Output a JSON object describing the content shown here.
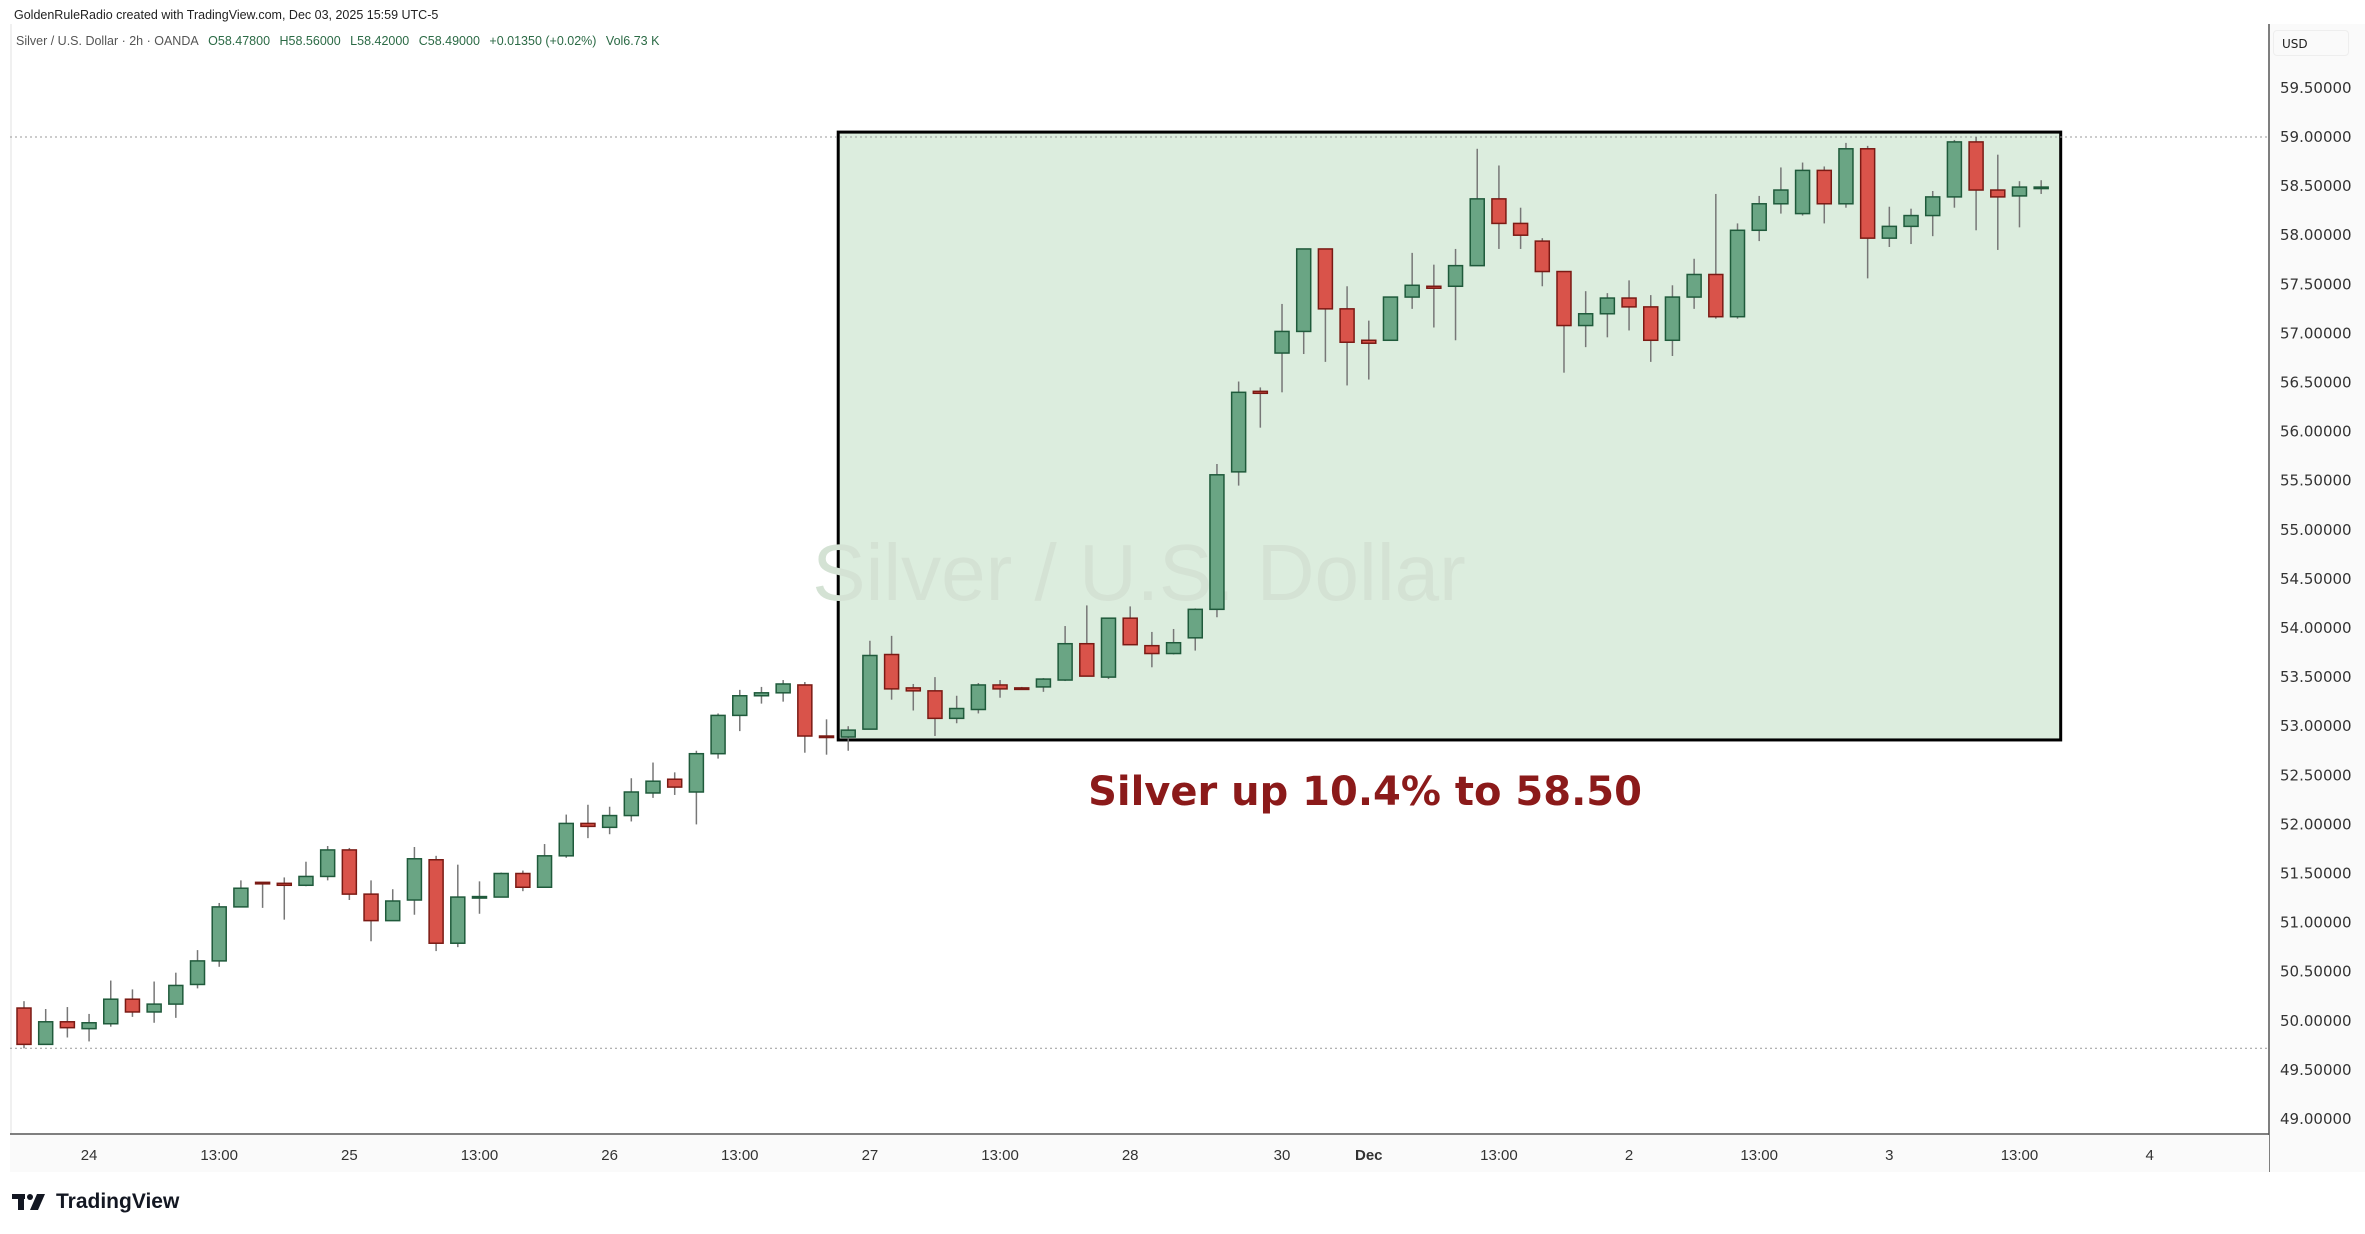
{
  "credit": "GoldenRuleRadio created with TradingView.com, Dec 03, 2025 15:59 UTC-5",
  "legend": {
    "symbol": "Silver / U.S. Dollar · 2h · OANDA",
    "open": "O58.47800",
    "high": "H58.56000",
    "low": "L58.42000",
    "close": "C58.49000",
    "change": "+0.01350 (+0.02%)",
    "volume": "Vol6.73 K"
  },
  "currency": "USD",
  "watermark": "Silver / U.S. Dollar",
  "annotation": "Silver up 10.4% to 58.50",
  "brand": "TradingView",
  "colors": {
    "up_fill": "#6aa584",
    "up_border": "#1f5a3b",
    "down_fill": "#d9534a",
    "down_border": "#7a1a14",
    "wick": "#777777",
    "box_fill": "#dcedde",
    "annotation": "#8b1a1a"
  },
  "chart_data": {
    "type": "candlestick",
    "title": "Silver / U.S. Dollar · 2h · OANDA",
    "ylabel": "USD",
    "ylim": [
      48.75,
      59.85
    ],
    "yticks": [
      "59.50000",
      "59.00000",
      "58.50000",
      "58.00000",
      "57.50000",
      "57.00000",
      "56.50000",
      "56.00000",
      "55.50000",
      "55.00000",
      "54.50000",
      "54.00000",
      "53.50000",
      "53.00000",
      "52.50000",
      "52.00000",
      "51.50000",
      "51.00000",
      "50.50000",
      "50.00000",
      "49.50000",
      "49.00000"
    ],
    "xticks": [
      {
        "index": 3,
        "label": "24",
        "bold": false
      },
      {
        "index": 9,
        "label": "13:00",
        "bold": false
      },
      {
        "index": 15,
        "label": "25",
        "bold": false
      },
      {
        "index": 21,
        "label": "13:00",
        "bold": false
      },
      {
        "index": 27,
        "label": "26",
        "bold": false
      },
      {
        "index": 33,
        "label": "13:00",
        "bold": false
      },
      {
        "index": 39,
        "label": "27",
        "bold": false
      },
      {
        "index": 45,
        "label": "13:00",
        "bold": false
      },
      {
        "index": 51,
        "label": "28",
        "bold": false
      },
      {
        "index": 58,
        "label": "30",
        "bold": false
      },
      {
        "index": 62,
        "label": "Dec",
        "bold": true
      },
      {
        "index": 68,
        "label": "13:00",
        "bold": false
      },
      {
        "index": 74,
        "label": "2",
        "bold": false
      },
      {
        "index": 80,
        "label": "13:00",
        "bold": false
      },
      {
        "index": 86,
        "label": "3",
        "bold": false
      },
      {
        "index": 92,
        "label": "13:00",
        "bold": false
      },
      {
        "index": 98,
        "label": "4",
        "bold": false
      }
    ],
    "high_line": 59.0,
    "low_line": 49.72,
    "highlight_box": {
      "from_index": 38,
      "to_index": 93.9,
      "price_low": 52.86,
      "price_high": 59.05
    },
    "ohlc": [
      [
        50.13,
        50.2,
        49.72,
        49.76
      ],
      [
        49.76,
        50.12,
        49.76,
        49.99
      ],
      [
        49.99,
        50.14,
        49.83,
        49.93
      ],
      [
        49.92,
        50.07,
        49.79,
        49.98
      ],
      [
        49.97,
        50.41,
        49.94,
        50.22
      ],
      [
        50.22,
        50.32,
        50.04,
        50.09
      ],
      [
        50.09,
        50.4,
        49.98,
        50.17
      ],
      [
        50.17,
        50.49,
        50.03,
        50.36
      ],
      [
        50.37,
        50.72,
        50.33,
        50.61
      ],
      [
        50.61,
        51.2,
        50.55,
        51.16
      ],
      [
        51.16,
        51.43,
        51.16,
        51.35
      ],
      [
        51.41,
        51.41,
        51.15,
        51.4
      ],
      [
        51.4,
        51.46,
        51.03,
        51.38
      ],
      [
        51.38,
        51.62,
        51.37,
        51.47
      ],
      [
        51.47,
        51.78,
        51.43,
        51.74
      ],
      [
        51.74,
        51.76,
        51.23,
        51.29
      ],
      [
        51.29,
        51.43,
        50.81,
        51.02
      ],
      [
        51.02,
        51.34,
        51.02,
        51.22
      ],
      [
        51.23,
        51.77,
        51.08,
        51.65
      ],
      [
        51.64,
        51.68,
        50.71,
        50.79
      ],
      [
        50.79,
        51.59,
        50.75,
        51.26
      ],
      [
        51.26,
        51.42,
        51.09,
        51.265
      ],
      [
        51.26,
        51.51,
        51.26,
        51.5
      ],
      [
        51.5,
        51.53,
        51.32,
        51.36
      ],
      [
        51.36,
        51.8,
        51.36,
        51.68
      ],
      [
        51.68,
        52.1,
        51.66,
        52.01
      ],
      [
        52.01,
        52.2,
        51.86,
        51.98
      ],
      [
        51.97,
        52.18,
        51.9,
        52.09
      ],
      [
        52.09,
        52.47,
        52.03,
        52.33
      ],
      [
        52.32,
        52.63,
        52.27,
        52.44
      ],
      [
        52.46,
        52.53,
        52.3,
        52.38
      ],
      [
        52.33,
        52.75,
        52.0,
        52.72
      ],
      [
        52.72,
        53.13,
        52.67,
        53.11
      ],
      [
        53.11,
        53.37,
        52.95,
        53.31
      ],
      [
        53.31,
        53.4,
        53.23,
        53.34
      ],
      [
        53.34,
        53.47,
        53.25,
        53.43
      ],
      [
        53.42,
        53.45,
        52.73,
        52.9
      ],
      [
        52.9,
        53.07,
        52.71,
        52.895
      ],
      [
        52.89,
        53.0,
        52.75,
        52.96
      ],
      [
        52.97,
        53.87,
        52.97,
        53.72
      ],
      [
        53.73,
        53.92,
        53.27,
        53.38
      ],
      [
        53.39,
        53.43,
        53.16,
        53.36
      ],
      [
        53.36,
        53.5,
        52.9,
        53.08
      ],
      [
        53.08,
        53.31,
        53.03,
        53.18
      ],
      [
        53.17,
        53.44,
        53.13,
        53.42
      ],
      [
        53.42,
        53.47,
        53.29,
        53.38
      ],
      [
        53.39,
        53.4,
        53.39,
        53.385
      ],
      [
        53.4,
        53.49,
        53.35,
        53.48
      ],
      [
        53.47,
        54.02,
        53.46,
        53.84
      ],
      [
        53.84,
        54.23,
        53.51,
        53.51
      ],
      [
        53.5,
        54.1,
        53.48,
        54.1
      ],
      [
        54.1,
        54.22,
        53.83,
        53.83
      ],
      [
        53.82,
        53.96,
        53.6,
        53.74
      ],
      [
        53.74,
        53.99,
        53.73,
        53.85
      ],
      [
        53.9,
        54.2,
        53.77,
        54.19
      ],
      [
        54.19,
        55.67,
        54.11,
        55.56
      ],
      [
        55.59,
        56.51,
        55.45,
        56.4
      ],
      [
        56.41,
        56.45,
        56.04,
        56.39
      ],
      [
        56.8,
        57.3,
        56.4,
        57.02
      ],
      [
        57.02,
        57.86,
        56.79,
        57.86
      ],
      [
        57.86,
        57.86,
        56.71,
        57.25
      ],
      [
        57.25,
        57.48,
        56.47,
        56.91
      ],
      [
        56.93,
        57.13,
        56.53,
        56.9
      ],
      [
        56.93,
        57.37,
        56.93,
        57.37
      ],
      [
        57.37,
        57.82,
        57.25,
        57.49
      ],
      [
        57.48,
        57.7,
        57.06,
        57.46
      ],
      [
        57.48,
        57.86,
        56.93,
        57.69
      ],
      [
        57.69,
        58.88,
        57.69,
        58.37
      ],
      [
        58.37,
        58.71,
        57.86,
        58.12
      ],
      [
        58.12,
        58.28,
        57.86,
        58.0
      ],
      [
        57.94,
        57.97,
        57.48,
        57.63
      ],
      [
        57.63,
        57.63,
        56.6,
        57.08
      ],
      [
        57.08,
        57.43,
        56.86,
        57.2
      ],
      [
        57.2,
        57.41,
        56.96,
        57.36
      ],
      [
        57.36,
        57.54,
        57.03,
        57.27
      ],
      [
        57.27,
        57.39,
        56.71,
        56.93
      ],
      [
        56.93,
        57.49,
        56.77,
        57.37
      ],
      [
        57.37,
        57.76,
        57.25,
        57.6
      ],
      [
        57.6,
        58.42,
        57.15,
        57.17
      ],
      [
        57.17,
        58.12,
        57.15,
        58.05
      ],
      [
        58.05,
        58.4,
        57.94,
        58.32
      ],
      [
        58.32,
        58.69,
        58.22,
        58.46
      ],
      [
        58.22,
        58.74,
        58.2,
        58.66
      ],
      [
        58.66,
        58.7,
        58.12,
        58.32
      ],
      [
        58.32,
        58.94,
        58.28,
        58.88
      ],
      [
        58.88,
        58.91,
        57.56,
        57.97
      ],
      [
        57.97,
        58.29,
        57.88,
        58.09
      ],
      [
        58.09,
        58.27,
        57.91,
        58.2
      ],
      [
        58.2,
        58.45,
        57.99,
        58.39
      ],
      [
        58.39,
        58.97,
        58.28,
        58.95
      ],
      [
        58.95,
        59.0,
        58.05,
        58.46
      ],
      [
        58.46,
        58.82,
        57.85,
        58.39
      ],
      [
        58.4,
        58.55,
        58.08,
        58.49
      ],
      [
        58.478,
        58.56,
        58.42,
        58.49
      ]
    ]
  }
}
